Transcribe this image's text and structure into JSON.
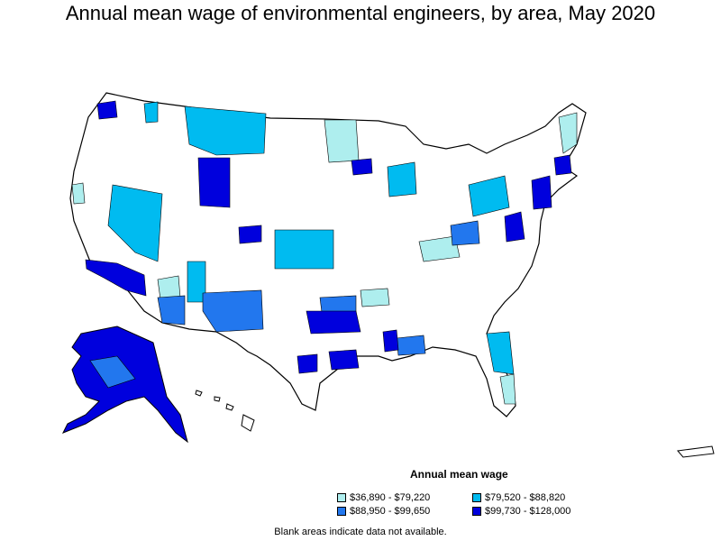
{
  "title": "Annual mean wage of environmental engineers, by area, May 2020",
  "legend": {
    "title": "Annual mean wage",
    "items": [
      {
        "label": "$36,890 - $79,220",
        "color": "#aeeeee"
      },
      {
        "label": "$79,520 - $88,820",
        "color": "#00bbf0"
      },
      {
        "label": "$88,950 - $99,650",
        "color": "#2277ee"
      },
      {
        "label": "$99,730 - $128,000",
        "color": "#0000dd"
      }
    ]
  },
  "footnote": "Blank areas indicate data not available."
}
